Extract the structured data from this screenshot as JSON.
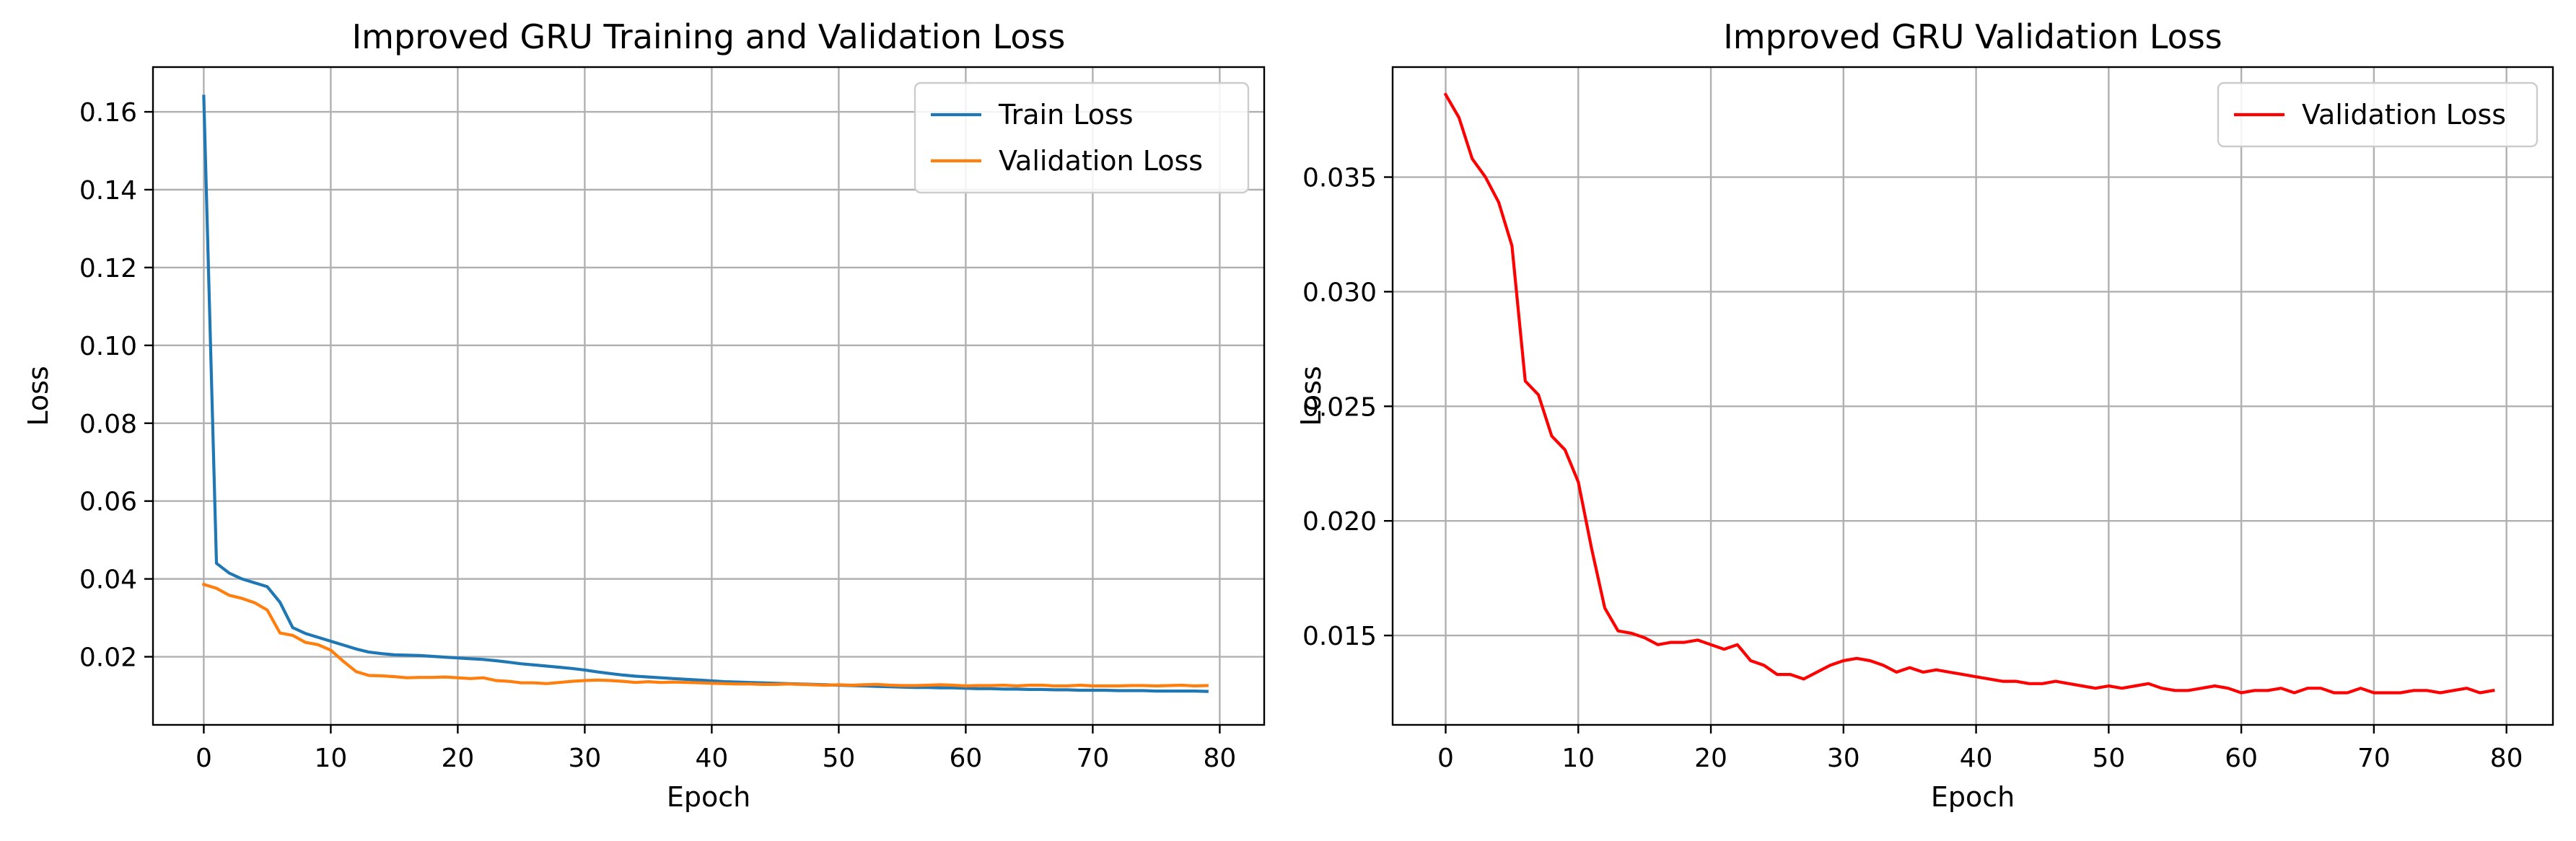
{
  "chart_data": [
    {
      "type": "line",
      "title": "Improved GRU Training and Validation Loss",
      "xlabel": "Epoch",
      "ylabel": "Loss",
      "xlim": [
        -4,
        83.5
      ],
      "ylim": [
        0.0025,
        0.1715
      ],
      "xticks": [
        0,
        10,
        20,
        30,
        40,
        50,
        60,
        70,
        80
      ],
      "yticks": [
        0.02,
        0.04,
        0.06,
        0.08,
        0.1,
        0.12,
        0.14,
        0.16
      ],
      "ytick_labels": [
        "0.02",
        "0.04",
        "0.06",
        "0.08",
        "0.10",
        "0.12",
        "0.14",
        "0.16"
      ],
      "grid": true,
      "legend_position": "top-right",
      "series": [
        {
          "name": "Train Loss",
          "color": "#1f77b4",
          "values": [
            0.164,
            0.044,
            0.0415,
            0.04,
            0.039,
            0.038,
            0.034,
            0.0275,
            0.026,
            0.025,
            0.024,
            0.023,
            0.022,
            0.0212,
            0.0208,
            0.0205,
            0.0204,
            0.0203,
            0.0201,
            0.0199,
            0.0197,
            0.0195,
            0.0193,
            0.019,
            0.0186,
            0.0182,
            0.0179,
            0.0176,
            0.0173,
            0.017,
            0.0166,
            0.0161,
            0.0157,
            0.0153,
            0.015,
            0.0148,
            0.0146,
            0.0144,
            0.0142,
            0.014,
            0.0138,
            0.0136,
            0.0135,
            0.0134,
            0.0133,
            0.0132,
            0.0131,
            0.013,
            0.0129,
            0.0128,
            0.0127,
            0.0126,
            0.0125,
            0.0124,
            0.0123,
            0.0122,
            0.0121,
            0.0121,
            0.012,
            0.012,
            0.0119,
            0.0118,
            0.0118,
            0.0117,
            0.0117,
            0.0116,
            0.0116,
            0.0115,
            0.0115,
            0.0114,
            0.0114,
            0.0114,
            0.0113,
            0.0113,
            0.0113,
            0.0112,
            0.0112,
            0.0112,
            0.0112,
            0.0111
          ]
        },
        {
          "name": "Validation Loss",
          "color": "#ff7f0e",
          "values": [
            0.0386,
            0.0376,
            0.0358,
            0.035,
            0.0339,
            0.032,
            0.0261,
            0.0255,
            0.0237,
            0.0231,
            0.0217,
            0.0188,
            0.0162,
            0.0152,
            0.0151,
            0.0149,
            0.0146,
            0.0147,
            0.0147,
            0.0148,
            0.0146,
            0.0144,
            0.0146,
            0.0139,
            0.0137,
            0.0133,
            0.0133,
            0.0131,
            0.0134,
            0.0137,
            0.0139,
            0.014,
            0.0139,
            0.0137,
            0.0134,
            0.0136,
            0.0134,
            0.0135,
            0.0134,
            0.0133,
            0.0132,
            0.0131,
            0.013,
            0.013,
            0.0129,
            0.0129,
            0.013,
            0.0129,
            0.0128,
            0.0127,
            0.0128,
            0.0127,
            0.0128,
            0.0129,
            0.0127,
            0.0126,
            0.0126,
            0.0127,
            0.0128,
            0.0127,
            0.0125,
            0.0126,
            0.0126,
            0.0127,
            0.0125,
            0.0127,
            0.0127,
            0.0125,
            0.0125,
            0.0127,
            0.0125,
            0.0125,
            0.0125,
            0.0126,
            0.0126,
            0.0125,
            0.0126,
            0.0127,
            0.0125,
            0.0126
          ]
        }
      ]
    },
    {
      "type": "line",
      "title": "Improved GRU Validation Loss",
      "xlabel": "Epoch",
      "ylabel": "Loss",
      "xlim": [
        -4,
        83.5
      ],
      "ylim": [
        0.0111,
        0.0398
      ],
      "xticks": [
        0,
        10,
        20,
        30,
        40,
        50,
        60,
        70,
        80
      ],
      "yticks": [
        0.015,
        0.02,
        0.025,
        0.03,
        0.035
      ],
      "ytick_labels": [
        "0.015",
        "0.020",
        "0.025",
        "0.030",
        "0.035"
      ],
      "grid": true,
      "legend_position": "top-right",
      "series": [
        {
          "name": "Validation Loss",
          "color": "#ff0000",
          "values": [
            0.0386,
            0.0376,
            0.0358,
            0.035,
            0.0339,
            0.032,
            0.0261,
            0.0255,
            0.0237,
            0.0231,
            0.0217,
            0.0188,
            0.0162,
            0.0152,
            0.0151,
            0.0149,
            0.0146,
            0.0147,
            0.0147,
            0.0148,
            0.0146,
            0.0144,
            0.0146,
            0.0139,
            0.0137,
            0.0133,
            0.0133,
            0.0131,
            0.0134,
            0.0137,
            0.0139,
            0.014,
            0.0139,
            0.0137,
            0.0134,
            0.0136,
            0.0134,
            0.0135,
            0.0134,
            0.0133,
            0.0132,
            0.0131,
            0.013,
            0.013,
            0.0129,
            0.0129,
            0.013,
            0.0129,
            0.0128,
            0.0127,
            0.0128,
            0.0127,
            0.0128,
            0.0129,
            0.0127,
            0.0126,
            0.0126,
            0.0127,
            0.0128,
            0.0127,
            0.0125,
            0.0126,
            0.0126,
            0.0127,
            0.0125,
            0.0127,
            0.0127,
            0.0125,
            0.0125,
            0.0127,
            0.0125,
            0.0125,
            0.0125,
            0.0126,
            0.0126,
            0.0125,
            0.0126,
            0.0127,
            0.0125,
            0.0126
          ]
        }
      ]
    }
  ]
}
